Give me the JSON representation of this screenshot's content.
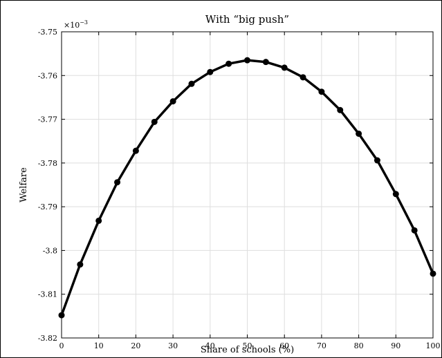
{
  "chart_data": {
    "type": "line",
    "title": "With “big push”",
    "xlabel": "Share of schools (%)",
    "ylabel": "Welfare",
    "scale_multiplier": "×10",
    "scale_exponent": "−3",
    "xlim": [
      0,
      100
    ],
    "ylim": [
      -3.82,
      -3.75
    ],
    "grid": true,
    "x_ticks": [
      "0",
      "10",
      "20",
      "30",
      "40",
      "50",
      "60",
      "70",
      "80",
      "90",
      "100"
    ],
    "y_ticks": [
      "-3.75",
      "-3.76",
      "-3.77",
      "-3.78",
      "-3.79",
      "-3.8",
      "-3.81",
      "-3.82"
    ],
    "series": [
      {
        "color": "#000000",
        "marker": "circle",
        "x": [
          0,
          5,
          10,
          15,
          20,
          25,
          30,
          35,
          40,
          45,
          50,
          55,
          60,
          65,
          70,
          75,
          80,
          85,
          90,
          95,
          100
        ],
        "y": [
          -3.8148,
          -3.8032,
          -3.7932,
          -3.7844,
          -3.7772,
          -3.7706,
          -3.7659,
          -3.7619,
          -3.7592,
          -3.7573,
          -3.7565,
          -3.7569,
          -3.7582,
          -3.7604,
          -3.7637,
          -3.7679,
          -3.7733,
          -3.7794,
          -3.7871,
          -3.7954,
          -3.8053
        ]
      }
    ]
  }
}
